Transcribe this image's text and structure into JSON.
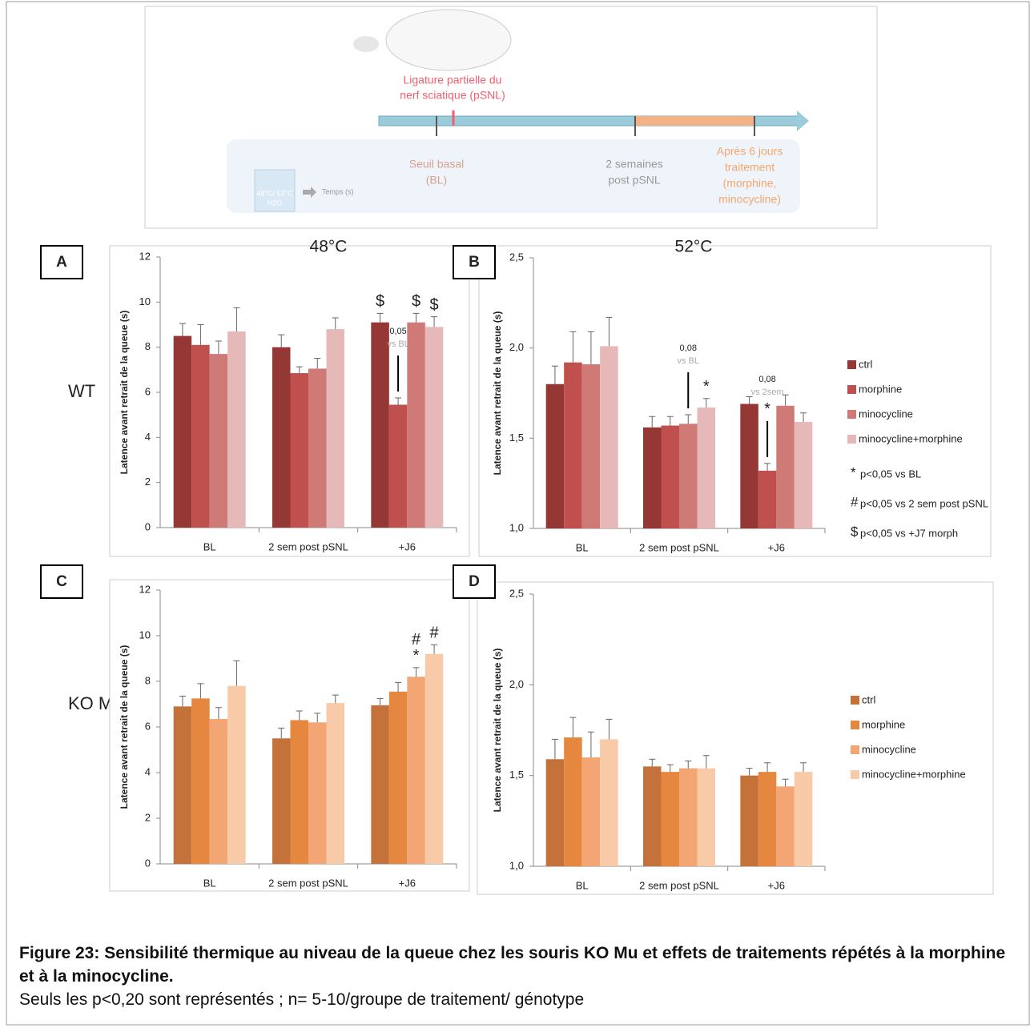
{
  "schematic": {
    "surgery": [
      "Ligature partielle du",
      "nerf sciatique (pSNL)"
    ],
    "baseline": [
      "Seuil basal",
      "(BL)"
    ],
    "week2": [
      "2 semaines",
      "post pSNL"
    ],
    "treatment": [
      "Après 6 jours",
      "traitement",
      "(morphine,",
      "minocycline)"
    ],
    "bath": [
      "48°C/ 52°C",
      "H2O"
    ],
    "time": "Temps (s)"
  },
  "row_labels": [
    "WT",
    "KO Mu"
  ],
  "caption": {
    "title": "Figure 23: Sensibilité thermique au niveau de la queue chez les souris KO Mu et effets de traitements répétés à la morphine et à la minocycline.",
    "note": "Seuls les p<0,20 sont représentés ; n= 5-10/groupe de traitement/ génotype"
  },
  "chart_data": [
    {
      "type": "bar",
      "panel": "A",
      "title": "48°C",
      "y_label": "Latence avant retrait de la queue (s)",
      "categories": [
        "BL",
        "2 sem post pSNL",
        "+J6"
      ],
      "ylim": [
        0,
        12
      ],
      "yticks": [
        0,
        2,
        4,
        6,
        8,
        10,
        12
      ],
      "series": [
        {
          "name": "ctrl",
          "color": "#953735",
          "values": [
            8.5,
            8.0,
            9.1
          ],
          "errors": [
            0.55,
            0.55,
            0.4
          ],
          "annotations": [
            null,
            null,
            [
              "$"
            ]
          ]
        },
        {
          "name": "morphine",
          "color": "#c0504d",
          "values": [
            8.1,
            6.85,
            5.45
          ],
          "errors": [
            0.9,
            0.28,
            0.3
          ],
          "annotations": [
            null,
            null,
            {
              "p": "0,05",
              "vs": "vs BL"
            }
          ]
        },
        {
          "name": "minocycline",
          "color": "#d07a78",
          "values": [
            7.7,
            7.05,
            9.1
          ],
          "errors": [
            0.57,
            0.46,
            0.4
          ],
          "annotations": [
            null,
            null,
            [
              "$"
            ]
          ]
        },
        {
          "name": "minocycline+morphine",
          "color": "#e6b9b8",
          "values": [
            8.7,
            8.8,
            8.9
          ],
          "errors": [
            1.05,
            0.5,
            0.45
          ],
          "annotations": [
            null,
            null,
            [
              "$"
            ]
          ]
        }
      ]
    },
    {
      "type": "bar",
      "panel": "B",
      "title": "52°C",
      "y_label": "Latence avant retrait de la queue (s)",
      "categories": [
        "BL",
        "2 sem post pSNL",
        "+J6"
      ],
      "ylim": [
        1,
        2.5
      ],
      "yticks": [
        {
          "value": 1,
          "label": "1,0"
        },
        {
          "value": 1.5,
          "label": "1,5"
        },
        {
          "value": 2,
          "label": "2,0"
        },
        {
          "value": 2.5,
          "label": "2,5"
        }
      ],
      "legend": "right",
      "legend_notes": [
        {
          "symbol": "*",
          "text": "p<0,05 vs BL"
        },
        {
          "symbol": "#",
          "text": "p<0,05 vs 2 sem post pSNL"
        },
        {
          "symbol": "$",
          "text": "p<0,05 vs +J7 morph"
        }
      ],
      "series": [
        {
          "name": "ctrl",
          "color": "#953735",
          "values": [
            1.8,
            1.56,
            1.69
          ],
          "errors": [
            0.1,
            0.06,
            0.04
          ],
          "annotations": [
            null,
            null,
            null
          ]
        },
        {
          "name": "morphine",
          "color": "#c0504d",
          "values": [
            1.92,
            1.57,
            1.32
          ],
          "errors": [
            0.17,
            0.05,
            0.04
          ],
          "annotations": [
            null,
            null,
            {
              "p": "0,08",
              "vs": "vs 2sem",
              "mark": "*"
            }
          ]
        },
        {
          "name": "minocycline",
          "color": "#d07a78",
          "values": [
            1.91,
            1.58,
            1.68
          ],
          "errors": [
            0.18,
            0.05,
            0.06
          ],
          "annotations": [
            null,
            {
              "p": "0,08",
              "vs": "vs BL"
            },
            null
          ]
        },
        {
          "name": "minocycline+morphine",
          "color": "#e6b9b8",
          "values": [
            2.01,
            1.67,
            1.59
          ],
          "errors": [
            0.16,
            0.05,
            0.05
          ],
          "annotations": [
            null,
            [
              "*"
            ],
            null
          ]
        }
      ]
    },
    {
      "type": "bar",
      "panel": "C",
      "y_label": "Latence avant retrait de la queue (s)",
      "categories": [
        "BL",
        "2 sem post pSNL",
        "+J6"
      ],
      "ylim": [
        0,
        12
      ],
      "yticks": [
        0,
        2,
        4,
        6,
        8,
        10,
        12
      ],
      "series": [
        {
          "name": "ctrl",
          "color": "#c5713a",
          "values": [
            6.9,
            5.5,
            6.95
          ],
          "errors": [
            0.45,
            0.45,
            0.3
          ],
          "annotations": [
            null,
            null,
            null
          ]
        },
        {
          "name": "morphine",
          "color": "#e6873f",
          "values": [
            7.25,
            6.3,
            7.55
          ],
          "errors": [
            0.65,
            0.4,
            0.4
          ],
          "annotations": [
            null,
            null,
            null
          ]
        },
        {
          "name": "minocycline",
          "color": "#f3a674",
          "values": [
            6.35,
            6.2,
            8.2
          ],
          "errors": [
            0.5,
            0.4,
            0.4
          ],
          "annotations": [
            null,
            null,
            [
              "#",
              "*"
            ]
          ]
        },
        {
          "name": "minocycline+morphine",
          "color": "#f9caa8",
          "values": [
            7.8,
            7.05,
            9.2
          ],
          "errors": [
            1.1,
            0.35,
            0.4
          ],
          "annotations": [
            null,
            null,
            [
              "#"
            ]
          ]
        }
      ]
    },
    {
      "type": "bar",
      "panel": "D",
      "y_label": "Latence avant retrait de la queue (s)",
      "categories": [
        "BL",
        "2 sem post pSNL",
        "+J6"
      ],
      "ylim": [
        1,
        2.5
      ],
      "yticks": [
        {
          "value": 1,
          "label": "1,0"
        },
        {
          "value": 1.5,
          "label": "1,5"
        },
        {
          "value": 2,
          "label": "2,0"
        },
        {
          "value": 2.5,
          "label": "2,5"
        }
      ],
      "legend": "right",
      "series": [
        {
          "name": "ctrl",
          "color": "#c5713a",
          "values": [
            1.59,
            1.55,
            1.5
          ],
          "errors": [
            0.11,
            0.04,
            0.04
          ],
          "annotations": [
            null,
            null,
            null
          ]
        },
        {
          "name": "morphine",
          "color": "#e6873f",
          "values": [
            1.71,
            1.52,
            1.52
          ],
          "errors": [
            0.11,
            0.04,
            0.05
          ],
          "annotations": [
            null,
            null,
            null
          ]
        },
        {
          "name": "minocycline",
          "color": "#f3a674",
          "values": [
            1.6,
            1.54,
            1.44
          ],
          "errors": [
            0.14,
            0.04,
            0.04
          ],
          "annotations": [
            null,
            null,
            null
          ]
        },
        {
          "name": "minocycline+morphine",
          "color": "#f9caa8",
          "values": [
            1.7,
            1.54,
            1.52
          ],
          "errors": [
            0.11,
            0.07,
            0.05
          ],
          "annotations": [
            null,
            null,
            null
          ]
        }
      ]
    }
  ]
}
